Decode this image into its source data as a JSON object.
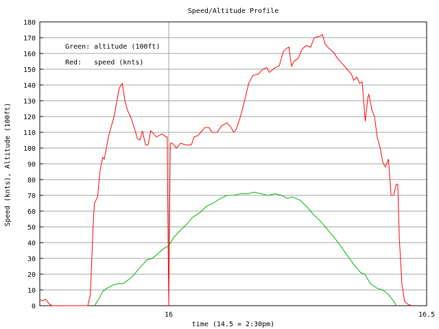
{
  "chart_data": {
    "type": "line",
    "title": "Speed/Altitude Profile",
    "x_label": "time (14.5 = 2:30pm)",
    "y_label": "Speed (knts), Altitude (100ft)",
    "annotations": [
      "Green: altitude (100ft)",
      "Red:   speed (knts)"
    ],
    "xlim": [
      15.75,
      16.5
    ],
    "xticks": [
      16,
      16.5
    ],
    "ylim": [
      0,
      180
    ],
    "yticks": [
      0,
      10,
      20,
      30,
      40,
      50,
      60,
      70,
      80,
      90,
      100,
      110,
      120,
      130,
      140,
      150,
      160,
      170,
      180
    ],
    "grid": true,
    "series": [
      {
        "color": "#ff0000",
        "x": [
          15.75,
          15.755,
          15.761,
          15.769,
          15.774,
          15.843,
          15.848,
          15.854,
          15.856,
          15.862,
          15.867,
          15.872,
          15.875,
          15.883,
          15.894,
          15.904,
          15.91,
          15.915,
          15.92,
          15.926,
          15.934,
          15.939,
          15.944,
          15.949,
          15.955,
          15.96,
          15.965,
          15.971,
          15.976,
          15.987,
          15.995,
          15.997,
          16.0,
          16.003,
          16.007,
          16.015,
          16.023,
          16.033,
          16.044,
          16.049,
          16.057,
          16.062,
          16.07,
          16.078,
          16.084,
          16.094,
          16.102,
          16.113,
          16.121,
          16.126,
          16.131,
          16.139,
          16.147,
          16.155,
          16.163,
          16.174,
          16.182,
          16.19,
          16.195,
          16.206,
          16.214,
          16.222,
          16.227,
          16.233,
          16.238,
          16.243,
          16.251,
          16.259,
          16.267,
          16.275,
          16.282,
          16.293,
          16.298,
          16.303,
          16.311,
          16.319,
          16.327,
          16.335,
          16.346,
          16.354,
          16.359,
          16.365,
          16.37,
          16.375,
          16.381,
          16.386,
          16.388,
          16.394,
          16.399,
          16.404,
          16.41,
          16.415,
          16.42,
          16.426,
          16.431,
          16.436,
          16.441,
          16.444,
          16.447,
          16.452,
          16.457,
          16.463,
          16.471
        ],
        "values": [
          4,
          3,
          4,
          1,
          0,
          0,
          7,
          55,
          65,
          69,
          86,
          94,
          93,
          107,
          120,
          138,
          141,
          130,
          124,
          120,
          112,
          106,
          105,
          111,
          102,
          102,
          111,
          109,
          107,
          109,
          107,
          107,
          0,
          103,
          103,
          100,
          103,
          102,
          102,
          107,
          108,
          110,
          113,
          113,
          110,
          110,
          114,
          116,
          113,
          110,
          112,
          120,
          130,
          141,
          146,
          147,
          150,
          151,
          148,
          151,
          152,
          161,
          163,
          164,
          152,
          155,
          157,
          163,
          165,
          164,
          170,
          171,
          172,
          166,
          163,
          161,
          157,
          154,
          150,
          147,
          143,
          145,
          141,
          142,
          117,
          132,
          134,
          124,
          120,
          107,
          100,
          91,
          88,
          93,
          70,
          70,
          77,
          77,
          43,
          14,
          3,
          1,
          0
        ]
      },
      {
        "color": "#00b000",
        "x": [
          15.856,
          15.864,
          15.872,
          15.88,
          15.891,
          15.902,
          15.912,
          15.92,
          15.931,
          15.941,
          15.952,
          15.957,
          15.968,
          15.979,
          15.989,
          16.0,
          16.009,
          16.02,
          16.033,
          16.046,
          16.06,
          16.073,
          16.086,
          16.1,
          16.113,
          16.126,
          16.139,
          16.152,
          16.166,
          16.179,
          16.192,
          16.206,
          16.219,
          16.23,
          16.24,
          16.254,
          16.267,
          16.28,
          16.293,
          16.306,
          16.319,
          16.333,
          16.346,
          16.359,
          16.372,
          16.38,
          16.391,
          16.404,
          16.415,
          16.426,
          16.436,
          16.441
        ],
        "values": [
          0,
          4,
          9,
          11,
          13,
          14,
          14,
          16,
          19,
          23,
          27,
          29,
          30,
          33,
          36,
          38,
          43,
          47,
          51,
          56,
          59,
          63,
          65,
          68,
          70,
          70,
          71,
          71,
          72,
          71,
          70,
          71,
          70,
          68,
          69,
          67,
          63,
          58,
          54,
          49,
          44,
          38,
          32,
          26,
          21,
          20,
          14,
          11,
          10,
          7,
          3,
          0
        ]
      }
    ]
  }
}
